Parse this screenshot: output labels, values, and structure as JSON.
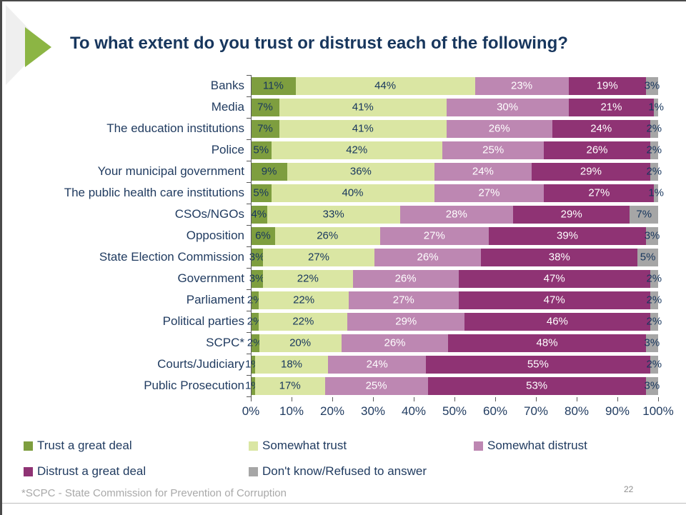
{
  "slide": {
    "title": "To what extent do you trust or distrust each of the following?",
    "footnote": "*SCPC - State Commission for Prevention of Corruption",
    "page_number": "22"
  },
  "colors": {
    "title_text": "#17365d",
    "axis_text": "#1f3a5f",
    "axis_line": "#595959",
    "accent_arrow_green": "#8cb544",
    "footnote_gray": "#a9a9a9"
  },
  "chart_data": {
    "type": "bar",
    "orientation": "horizontal",
    "stacked": true,
    "grid": false,
    "legend_position": "bottom",
    "value_suffix": "%",
    "xlim": [
      0,
      100
    ],
    "x_axis_ticks": [
      "0%",
      "10%",
      "20%",
      "30%",
      "40%",
      "50%",
      "60%",
      "70%",
      "80%",
      "90%",
      "100%"
    ],
    "categories": [
      "Banks",
      "Media",
      "The education institutions",
      "Police",
      "Your municipal government",
      "The public health care institutions",
      "CSOs/NGOs",
      "Opposition",
      "State Election Commission",
      "Government",
      "Parliament",
      "Political parties",
      "SCPC*",
      "Courts/Judiciary",
      "Public Prosecution"
    ],
    "series": [
      {
        "name": "Trust a great deal",
        "color": "#7e9e3f",
        "label_color": "#17365d",
        "values": [
          11,
          7,
          7,
          5,
          9,
          5,
          4,
          6,
          3,
          3,
          2,
          2,
          2,
          1,
          1
        ]
      },
      {
        "name": "Somewhat trust",
        "color": "#dae6a3",
        "label_color": "#17365d",
        "values": [
          44,
          41,
          41,
          42,
          36,
          40,
          33,
          26,
          27,
          22,
          22,
          22,
          20,
          18,
          17
        ]
      },
      {
        "name": "Somewhat distrust",
        "color": "#bd87b2",
        "label_color": "#ffffff",
        "values": [
          23,
          30,
          26,
          25,
          24,
          27,
          28,
          27,
          26,
          26,
          27,
          29,
          26,
          24,
          25
        ]
      },
      {
        "name": "Distrust a great deal",
        "color": "#8f3374",
        "label_color": "#ffffff",
        "values": [
          19,
          21,
          24,
          26,
          29,
          27,
          29,
          39,
          38,
          47,
          47,
          46,
          48,
          55,
          53
        ]
      },
      {
        "name": "Don't know/Refused to answer",
        "color": "#a6a6a6",
        "label_color": "#17365d",
        "values": [
          3,
          1,
          2,
          2,
          2,
          1,
          7,
          3,
          5,
          2,
          2,
          2,
          3,
          2,
          3
        ]
      }
    ]
  }
}
